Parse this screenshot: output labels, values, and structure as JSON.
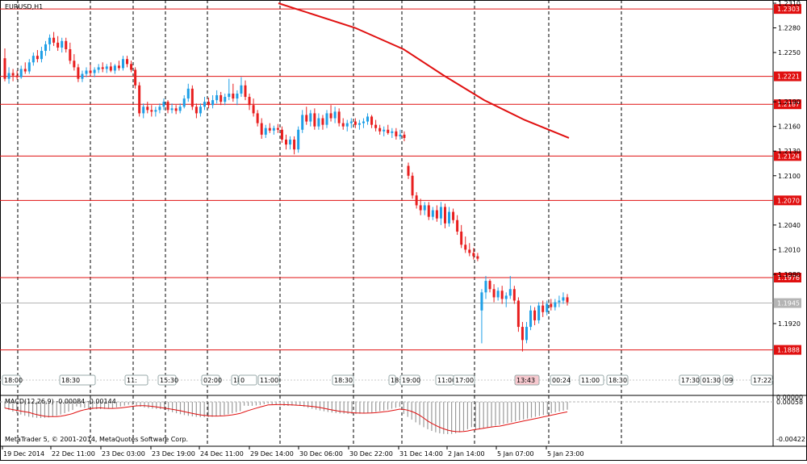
{
  "window": {
    "title": "EURUSD,H1"
  },
  "colors": {
    "background": "#ffffff",
    "bull": "#1e9fe6",
    "bear": "#e81e1e",
    "line": "#e01010",
    "grid": "#000000",
    "current_price_line": "#b4b4b4",
    "macd_histogram": "#9a9a9a",
    "macd_signal": "#e01010"
  },
  "price_axis": {
    "min": 1.1865,
    "max": 1.231,
    "tick_labels": [
      "1.2310",
      "1.2280",
      "1.2250",
      "1.2190",
      "1.2160",
      "1.2130",
      "1.2100",
      "1.2040",
      "1.2010",
      "1.1980",
      "1.1920"
    ]
  },
  "horizontal_lines": [
    {
      "label": "1.2303",
      "price": 1.2303
    },
    {
      "label": "1.2221",
      "price": 1.2221
    },
    {
      "label": "1.2187",
      "price": 1.2187
    },
    {
      "label": "1.2124",
      "price": 1.2124
    },
    {
      "label": "1.2070",
      "price": 1.207
    },
    {
      "label": "1.1976",
      "price": 1.1976
    },
    {
      "label": "1.1888",
      "price": 1.1888
    }
  ],
  "current_price": {
    "label": "1.1945",
    "price": 1.1945
  },
  "events": {
    "labels": [
      "18:00",
      "18:30",
      "11:",
      "15:30",
      "02:00",
      "18:36",
      "0",
      "11:00",
      "18:30",
      "18:30",
      "19:00",
      "11:00",
      "17:00",
      "13:43",
      "00:24",
      "11:00",
      "18:30",
      "17:30",
      "01:30",
      "09",
      "17:22"
    ],
    "highlighted": "13:43"
  },
  "macd": {
    "label": "MACD(12,26,9) -0.00084 -0.00144",
    "axis_labels": [
      "0.00000",
      "0.00058",
      "-0.00422"
    ]
  },
  "copyright": "MetaTrader 5, © 2001-2014, MetaQuotes Software Corp.",
  "time_axis": {
    "labels": [
      "19 Dec 2014",
      "22 Dec 11:00",
      "23 Dec 03:00",
      "23 Dec 19:00",
      "24 Dec 11:00",
      "29 Dec 14:00",
      "30 Dec 06:00",
      "30 Dec 22:00",
      "31 Dec 14:00",
      "2 Jan 14:00",
      "5 Jan 07:00",
      "5 Jan 23:00"
    ]
  },
  "chart_data": {
    "type": "candlestick",
    "symbol": "EURUSD",
    "timeframe": "H1",
    "ylim": [
      1.1865,
      1.231
    ],
    "candles": [
      [
        1.2243,
        1.2255,
        1.2215,
        1.2218
      ],
      [
        1.2218,
        1.2232,
        1.2212,
        1.2225
      ],
      [
        1.2225,
        1.223,
        1.2215,
        1.2222
      ],
      [
        1.2222,
        1.2228,
        1.2217,
        1.222
      ],
      [
        1.222,
        1.2234,
        1.2218,
        1.223
      ],
      [
        1.223,
        1.2238,
        1.2224,
        1.2227
      ],
      [
        1.2227,
        1.2242,
        1.2224,
        1.2238
      ],
      [
        1.2238,
        1.225,
        1.2234,
        1.2246
      ],
      [
        1.2246,
        1.2253,
        1.2238,
        1.2242
      ],
      [
        1.2242,
        1.2257,
        1.2238,
        1.2252
      ],
      [
        1.2252,
        1.2264,
        1.2246,
        1.226
      ],
      [
        1.226,
        1.2272,
        1.2252,
        1.2268
      ],
      [
        1.2268,
        1.2275,
        1.2258,
        1.2262
      ],
      [
        1.2262,
        1.227,
        1.2252,
        1.2256
      ],
      [
        1.2256,
        1.2268,
        1.225,
        1.2264
      ],
      [
        1.2264,
        1.2268,
        1.225,
        1.2254
      ],
      [
        1.2254,
        1.2262,
        1.2236,
        1.224
      ],
      [
        1.224,
        1.2248,
        1.2228,
        1.2232
      ],
      [
        1.2232,
        1.2236,
        1.2214,
        1.2218
      ],
      [
        1.2218,
        1.2228,
        1.2214,
        1.2224
      ],
      [
        1.2224,
        1.2232,
        1.222,
        1.2228
      ],
      [
        1.2228,
        1.2235,
        1.2222,
        1.2225
      ],
      [
        1.2225,
        1.2232,
        1.222,
        1.2229
      ],
      [
        1.2229,
        1.2236,
        1.2225,
        1.2232
      ],
      [
        1.2232,
        1.2238,
        1.2226,
        1.223
      ],
      [
        1.223,
        1.2236,
        1.2225,
        1.2233
      ],
      [
        1.2233,
        1.2238,
        1.2226,
        1.2228
      ],
      [
        1.2228,
        1.2236,
        1.2224,
        1.2234
      ],
      [
        1.2234,
        1.224,
        1.2228,
        1.2231
      ],
      [
        1.2231,
        1.2246,
        1.2228,
        1.2242
      ],
      [
        1.2242,
        1.2246,
        1.2232,
        1.2236
      ],
      [
        1.2236,
        1.224,
        1.2226,
        1.2229
      ],
      [
        1.2229,
        1.2232,
        1.2206,
        1.221
      ],
      [
        1.221,
        1.2214,
        1.2172,
        1.2176
      ],
      [
        1.2176,
        1.2188,
        1.217,
        1.2184
      ],
      [
        1.2184,
        1.219,
        1.2176,
        1.218
      ],
      [
        1.218,
        1.2186,
        1.2172,
        1.2178
      ],
      [
        1.2178,
        1.2184,
        1.2172,
        1.218
      ],
      [
        1.218,
        1.2188,
        1.2176,
        1.2184
      ],
      [
        1.2184,
        1.2194,
        1.218,
        1.219
      ],
      [
        1.219,
        1.2192,
        1.2176,
        1.218
      ],
      [
        1.218,
        1.2188,
        1.2176,
        1.2182
      ],
      [
        1.2182,
        1.2186,
        1.2175,
        1.2179
      ],
      [
        1.2179,
        1.2188,
        1.2176,
        1.2184
      ],
      [
        1.2184,
        1.2198,
        1.2182,
        1.2194
      ],
      [
        1.2194,
        1.2212,
        1.219,
        1.2206
      ],
      [
        1.2206,
        1.221,
        1.218,
        1.2184
      ],
      [
        1.2184,
        1.2188,
        1.217,
        1.2176
      ],
      [
        1.2176,
        1.2188,
        1.2172,
        1.2184
      ],
      [
        1.2184,
        1.2196,
        1.218,
        1.219
      ],
      [
        1.219,
        1.2195,
        1.2182,
        1.2186
      ],
      [
        1.2186,
        1.2198,
        1.2182,
        1.2192
      ],
      [
        1.2192,
        1.2204,
        1.2188,
        1.2198
      ],
      [
        1.2198,
        1.2202,
        1.2186,
        1.219
      ],
      [
        1.219,
        1.22,
        1.2186,
        1.2196
      ],
      [
        1.2196,
        1.2218,
        1.2192,
        1.22
      ],
      [
        1.22,
        1.2212,
        1.219,
        1.2194
      ],
      [
        1.2194,
        1.2204,
        1.2186,
        1.22
      ],
      [
        1.22,
        1.222,
        1.2196,
        1.221
      ],
      [
        1.221,
        1.2216,
        1.2192,
        1.2196
      ],
      [
        1.2196,
        1.22,
        1.218,
        1.2186
      ],
      [
        1.2186,
        1.2194,
        1.2172,
        1.2176
      ],
      [
        1.2176,
        1.218,
        1.216,
        1.2164
      ],
      [
        1.2164,
        1.217,
        1.2145,
        1.215
      ],
      [
        1.215,
        1.2162,
        1.2146,
        1.2158
      ],
      [
        1.2158,
        1.2164,
        1.2152,
        1.2155
      ],
      [
        1.2155,
        1.2161,
        1.215,
        1.2158
      ],
      [
        1.2158,
        1.2163,
        1.2152,
        1.2156
      ],
      [
        1.2156,
        1.216,
        1.214,
        1.2144
      ],
      [
        1.2144,
        1.215,
        1.2132,
        1.2138
      ],
      [
        1.2138,
        1.2148,
        1.2132,
        1.2144
      ],
      [
        1.2144,
        1.2148,
        1.2126,
        1.2132
      ],
      [
        1.2132,
        1.216,
        1.2128,
        1.2156
      ],
      [
        1.2156,
        1.218,
        1.2152,
        1.2174
      ],
      [
        1.2174,
        1.2184,
        1.2162,
        1.2166
      ],
      [
        1.2166,
        1.218,
        1.216,
        1.2176
      ],
      [
        1.2176,
        1.2182,
        1.2156,
        1.216
      ],
      [
        1.216,
        1.2176,
        1.2156,
        1.217
      ],
      [
        1.217,
        1.2174,
        1.2156,
        1.2162
      ],
      [
        1.2162,
        1.218,
        1.2158,
        1.2176
      ],
      [
        1.2176,
        1.2186,
        1.2166,
        1.217
      ],
      [
        1.217,
        1.2184,
        1.2164,
        1.2178
      ],
      [
        1.2178,
        1.2182,
        1.216,
        1.2164
      ],
      [
        1.2164,
        1.217,
        1.2156,
        1.216
      ],
      [
        1.216,
        1.2168,
        1.2154,
        1.2164
      ],
      [
        1.2164,
        1.217,
        1.2158,
        1.2166
      ],
      [
        1.2166,
        1.217,
        1.2158,
        1.2162
      ],
      [
        1.2162,
        1.2168,
        1.2156,
        1.2164
      ],
      [
        1.2164,
        1.217,
        1.2158,
        1.2166
      ],
      [
        1.2166,
        1.2176,
        1.2162,
        1.2172
      ],
      [
        1.2172,
        1.2174,
        1.2158,
        1.2162
      ],
      [
        1.2162,
        1.2168,
        1.2154,
        1.2158
      ],
      [
        1.2158,
        1.2162,
        1.215,
        1.2154
      ],
      [
        1.2154,
        1.216,
        1.2148,
        1.2156
      ],
      [
        1.2156,
        1.2162,
        1.215,
        1.2152
      ],
      [
        1.2152,
        1.2158,
        1.2146,
        1.2154
      ],
      [
        1.2154,
        1.2158,
        1.2144,
        1.2148
      ],
      [
        1.2148,
        1.2156,
        1.2144,
        1.215
      ],
      [
        1.215,
        1.2154,
        1.2142,
        1.2146
      ],
      [
        1.2112,
        1.2116,
        1.2096,
        1.21
      ],
      [
        1.21,
        1.2104,
        1.2072,
        1.2076
      ],
      [
        1.2076,
        1.208,
        1.206,
        1.2064
      ],
      [
        1.2064,
        1.2072,
        1.2052,
        1.2058
      ],
      [
        1.2058,
        1.2068,
        1.2052,
        1.2064
      ],
      [
        1.2064,
        1.2068,
        1.2046,
        1.205
      ],
      [
        1.205,
        1.2062,
        1.2046,
        1.2058
      ],
      [
        1.2058,
        1.2064,
        1.2044,
        1.2048
      ],
      [
        1.2048,
        1.2068,
        1.204,
        1.2062
      ],
      [
        1.2062,
        1.2066,
        1.2036,
        1.2042
      ],
      [
        1.2042,
        1.2062,
        1.2038,
        1.2056
      ],
      [
        1.2056,
        1.206,
        1.2042,
        1.2046
      ],
      [
        1.2046,
        1.2052,
        1.2028,
        1.2032
      ],
      [
        1.2032,
        1.204,
        1.2012,
        1.2016
      ],
      [
        1.2016,
        1.2026,
        1.2006,
        1.201
      ],
      [
        1.201,
        1.2018,
        1.2002,
        1.2006
      ],
      [
        1.2006,
        1.2012,
        1.1998,
        1.2002
      ],
      [
        1.2002,
        1.2006,
        1.1996,
        1.1999
      ],
      [
        1.1936,
        1.1962,
        1.1896,
        1.1958
      ],
      [
        1.1958,
        1.1978,
        1.195,
        1.1972
      ],
      [
        1.1972,
        1.1974,
        1.1958,
        1.1962
      ],
      [
        1.1962,
        1.1968,
        1.1946,
        1.1952
      ],
      [
        1.1952,
        1.1964,
        1.1948,
        1.196
      ],
      [
        1.196,
        1.1966,
        1.1944,
        1.195
      ],
      [
        1.195,
        1.1958,
        1.194,
        1.1954
      ],
      [
        1.1954,
        1.1978,
        1.195,
        1.1962
      ],
      [
        1.1962,
        1.1966,
        1.1944,
        1.1948
      ],
      [
        1.1948,
        1.1952,
        1.191,
        1.1916
      ],
      [
        1.1916,
        1.1922,
        1.1886,
        1.19
      ],
      [
        1.19,
        1.1922,
        1.1896,
        1.1916
      ],
      [
        1.1916,
        1.1942,
        1.1912,
        1.1936
      ],
      [
        1.1936,
        1.194,
        1.1918,
        1.1924
      ],
      [
        1.1924,
        1.1946,
        1.192,
        1.1942
      ],
      [
        1.1942,
        1.1948,
        1.1928,
        1.1934
      ],
      [
        1.1934,
        1.1948,
        1.193,
        1.1944
      ],
      [
        1.1944,
        1.195,
        1.1936,
        1.194
      ],
      [
        1.194,
        1.195,
        1.1936,
        1.1946
      ],
      [
        1.1946,
        1.1954,
        1.194,
        1.1948
      ],
      [
        1.1948,
        1.1958,
        1.1944,
        1.1952
      ],
      [
        1.1952,
        1.1956,
        1.1942,
        1.1946
      ]
    ],
    "moving_average": [
      [
        1.231,
        0.345
      ],
      [
        1.228,
        0.44
      ],
      [
        1.2254,
        0.5
      ],
      [
        1.2222,
        0.55
      ],
      [
        1.2192,
        0.6
      ],
      [
        1.2168,
        0.65
      ],
      [
        1.2146,
        0.705
      ]
    ]
  }
}
